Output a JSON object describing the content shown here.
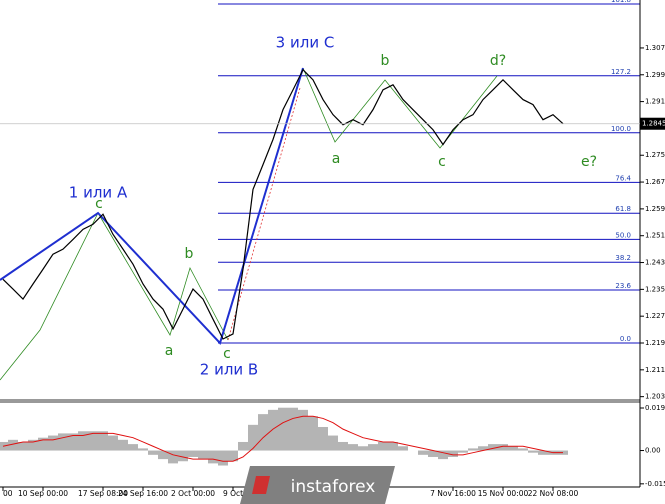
{
  "chart_data": [
    {
      "type": "line",
      "color": "#000000",
      "categories": [
        "00",
        null,
        null,
        null,
        "10 Sep 00:00",
        null,
        null,
        null,
        null,
        null,
        "17 Sep 08:00",
        null,
        null,
        null,
        "24 Sep 16:00",
        null,
        null,
        null,
        null,
        "2 Oct 00:00",
        null,
        null,
        null,
        "9 Oct",
        null,
        null,
        null,
        null,
        null,
        null,
        null,
        null,
        null,
        null,
        null,
        null,
        null,
        null,
        null,
        null,
        null,
        null,
        null,
        null,
        null,
        "7 Nov 16:00",
        null,
        null,
        null,
        null,
        "15 Nov 00:00",
        null,
        null,
        null,
        null,
        "22 Nov 08:00",
        null
      ],
      "values": [
        1.2381,
        1.2352,
        1.2322,
        1.2367,
        1.2411,
        1.2456,
        1.2471,
        1.25,
        1.253,
        1.2545,
        1.2575,
        1.2515,
        1.2471,
        1.2426,
        1.2367,
        1.2322,
        1.2292,
        1.2233,
        1.2292,
        1.2352,
        1.2322,
        1.2262,
        1.2203,
        1.2218,
        1.2411,
        1.2649,
        1.2723,
        1.2798,
        1.2887,
        1.2946,
        1.3006,
        1.2976,
        1.2917,
        1.2872,
        1.2842,
        1.2857,
        1.2842,
        1.2887,
        1.2946,
        1.2961,
        1.2917,
        1.2887,
        1.2857,
        1.2827,
        1.2783,
        1.2827,
        1.2857,
        1.2872,
        1.2917,
        1.2946,
        1.2976,
        1.2946,
        1.2917,
        1.2902,
        1.2857,
        1.2872,
        1.2845
      ],
      "ylim": [
        1.2024,
        1.3214
      ],
      "yticks": [
        1.3071,
        1.2991,
        1.2911,
        1.2751,
        1.2671,
        1.2591,
        1.2511,
        1.2431,
        1.2351,
        1.2271,
        1.2191,
        1.2111,
        1.2031
      ],
      "last_price": 1.2845,
      "level_color": "#1010c0",
      "levels": [
        {
          "value": 1.2191,
          "label": "0.0"
        },
        {
          "value": 1.2349,
          "label": "23.6"
        },
        {
          "value": 1.2432,
          "label": "38.2"
        },
        {
          "value": 1.25,
          "label": "50.0"
        },
        {
          "value": 1.2578,
          "label": "61.8"
        },
        {
          "value": 1.267,
          "label": "76.4"
        },
        {
          "value": 1.2818,
          "label": "100.0"
        },
        {
          "value": 1.2988,
          "label": "127.2"
        },
        {
          "value": 1.3202,
          "label": "161.8"
        }
      ],
      "annotations": [
        "1 или A",
        "c",
        "a",
        "b",
        "c",
        "2 или B",
        "3 или C",
        "b",
        "a",
        "c",
        "d?",
        "e?"
      ],
      "watermark": "instaforex"
    },
    {
      "type": "bar",
      "ylim": [
        -0.01656,
        0.0222
      ],
      "yticks": [
        0.01987,
        {
          "value": 0,
          "label": "0.00"
        },
        -0.01555
      ],
      "series": [
        {
          "type": "bar",
          "color": "#b4b4b4",
          "values": [
            0.004,
            0.005,
            0.004,
            0.005,
            0.006,
            0.007,
            0.008,
            0.008,
            0.009,
            0.009,
            0.009,
            0.007,
            0.005,
            0.003,
            0.001,
            -0.002,
            -0.004,
            -0.006,
            -0.005,
            -0.003,
            -0.004,
            -0.006,
            -0.007,
            -0.005,
            0.004,
            0.012,
            0.017,
            0.019,
            0.02,
            0.02,
            0.019,
            0.016,
            0.011,
            0.007,
            0.004,
            0.003,
            0.002,
            0.003,
            0.004,
            0.004,
            0.002,
            0,
            -0.002,
            -0.003,
            -0.004,
            -0.003,
            -0.001,
            0.001,
            0.002,
            0.003,
            0.003,
            0.002,
            0.001,
            -0.001,
            -0.002,
            -0.002,
            -0.002
          ]
        },
        {
          "type": "line",
          "color": "#e01010",
          "values": [
            0.002,
            0.003,
            0.004,
            0.004,
            0.005,
            0.005,
            0.006,
            0.007,
            0.007,
            0.008,
            0.008,
            0.008,
            0.007,
            0.006,
            0.004,
            0.002,
            0,
            -0.002,
            -0.003,
            -0.004,
            -0.004,
            -0.004,
            -0.005,
            -0.005,
            -0.003,
            0.001,
            0.006,
            0.01,
            0.013,
            0.015,
            0.016,
            0.016,
            0.015,
            0.013,
            0.01,
            0.008,
            0.006,
            0.005,
            0.004,
            0.004,
            0.003,
            0.002,
            0.001,
            0,
            -0.001,
            -0.002,
            -0.002,
            -0.001,
            0,
            0.001,
            0.002,
            0.002,
            0.002,
            0.001,
            0,
            -0.001,
            -0.001
          ]
        }
      ]
    }
  ]
}
